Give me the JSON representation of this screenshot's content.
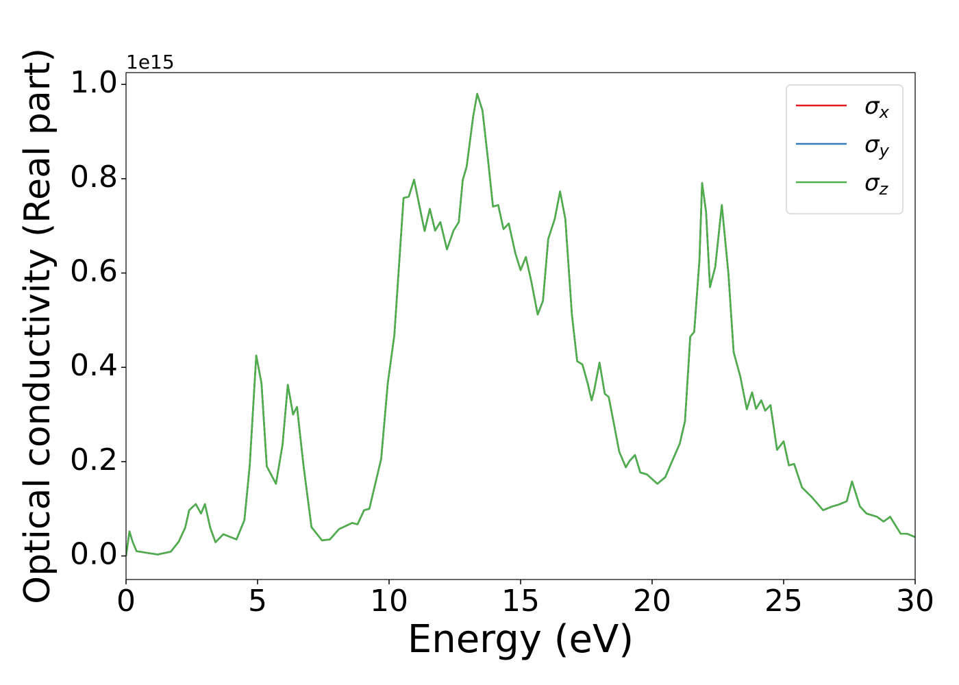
{
  "chart_data": {
    "type": "line",
    "xlabel": "Energy (eV)",
    "ylabel": "Optical conductivity (Real part)",
    "y_offset_label": "1e15",
    "legend": "upper right",
    "grid": false,
    "xlim": [
      0,
      30
    ],
    "ylim": [
      -0.05,
      1.025
    ],
    "xticks": [
      0,
      5,
      10,
      15,
      20,
      25,
      30
    ],
    "yticks": [
      {
        "value": 0,
        "label": "0.0"
      },
      {
        "value": 0.2,
        "label": "0.2"
      },
      {
        "value": 0.4,
        "label": "0.4"
      },
      {
        "value": 0.6,
        "label": "0.6"
      },
      {
        "value": 0.8,
        "label": "0.8"
      },
      {
        "value": 1,
        "label": "1.0"
      }
    ],
    "x": [
      0,
      0.13,
      0.25,
      0.4,
      1.2,
      1.7,
      2.0,
      2.25,
      2.4,
      2.65,
      2.85,
      3.0,
      3.2,
      3.4,
      3.7,
      4.2,
      4.5,
      4.7,
      4.95,
      5.15,
      5.35,
      5.7,
      5.95,
      6.15,
      6.35,
      6.5,
      6.75,
      7.05,
      7.45,
      7.75,
      8.1,
      8.6,
      8.8,
      9.05,
      9.25,
      9.7,
      9.95,
      10.2,
      10.55,
      10.75,
      10.95,
      11.35,
      11.55,
      11.75,
      11.95,
      12.2,
      12.45,
      12.65,
      12.8,
      12.95,
      13.2,
      13.35,
      13.55,
      13.75,
      13.95,
      14.15,
      14.35,
      14.55,
      14.8,
      15.0,
      15.2,
      15.4,
      15.65,
      15.85,
      16.05,
      16.3,
      16.5,
      16.7,
      16.95,
      17.15,
      17.35,
      17.55,
      17.7,
      17.8,
      18.0,
      18.2,
      18.35,
      18.5,
      18.75,
      19.0,
      19.15,
      19.35,
      19.55,
      19.8,
      20.2,
      20.5,
      20.8,
      21.05,
      21.25,
      21.45,
      21.6,
      21.8,
      21.9,
      22.05,
      22.2,
      22.4,
      22.65,
      22.9,
      23.1,
      23.35,
      23.6,
      23.8,
      23.95,
      24.15,
      24.3,
      24.5,
      24.75,
      25.0,
      25.2,
      25.4,
      25.7,
      26.05,
      26.5,
      26.85,
      27.1,
      27.4,
      27.6,
      27.9,
      28.15,
      28.55,
      28.8,
      29.05,
      29.45,
      29.7,
      30
    ],
    "series": [
      {
        "name": "σx",
        "color": "#e41a1c",
        "values": [
          0,
          0.052,
          0.03,
          0.01,
          0.003,
          0.009,
          0.03,
          0.06,
          0.097,
          0.11,
          0.09,
          0.11,
          0.06,
          0.029,
          0.046,
          0.035,
          0.076,
          0.19,
          0.425,
          0.366,
          0.19,
          0.153,
          0.236,
          0.363,
          0.3,
          0.316,
          0.19,
          0.061,
          0.033,
          0.035,
          0.057,
          0.07,
          0.067,
          0.097,
          0.1,
          0.206,
          0.366,
          0.468,
          0.759,
          0.762,
          0.798,
          0.689,
          0.736,
          0.69,
          0.708,
          0.65,
          0.69,
          0.708,
          0.797,
          0.826,
          0.933,
          0.98,
          0.945,
          0.846,
          0.741,
          0.744,
          0.693,
          0.705,
          0.642,
          0.606,
          0.634,
          0.584,
          0.512,
          0.541,
          0.672,
          0.715,
          0.773,
          0.715,
          0.512,
          0.413,
          0.406,
          0.366,
          0.33,
          0.352,
          0.41,
          0.344,
          0.337,
          0.294,
          0.221,
          0.188,
          0.202,
          0.214,
          0.177,
          0.173,
          0.153,
          0.167,
          0.206,
          0.238,
          0.286,
          0.465,
          0.475,
          0.628,
          0.791,
          0.73,
          0.57,
          0.613,
          0.744,
          0.599,
          0.432,
          0.381,
          0.311,
          0.347,
          0.312,
          0.33,
          0.308,
          0.32,
          0.225,
          0.243,
          0.192,
          0.195,
          0.145,
          0.126,
          0.097,
          0.105,
          0.109,
          0.116,
          0.158,
          0.105,
          0.09,
          0.083,
          0.073,
          0.083,
          0.047,
          0.047,
          0.04
        ]
      },
      {
        "name": "σy",
        "color": "#377eb8",
        "values": [
          0,
          0.052,
          0.03,
          0.01,
          0.003,
          0.009,
          0.03,
          0.06,
          0.097,
          0.11,
          0.09,
          0.11,
          0.06,
          0.029,
          0.046,
          0.035,
          0.076,
          0.19,
          0.425,
          0.366,
          0.19,
          0.153,
          0.236,
          0.363,
          0.3,
          0.316,
          0.19,
          0.061,
          0.033,
          0.035,
          0.057,
          0.07,
          0.067,
          0.097,
          0.1,
          0.206,
          0.366,
          0.468,
          0.759,
          0.762,
          0.798,
          0.689,
          0.736,
          0.69,
          0.708,
          0.65,
          0.69,
          0.708,
          0.797,
          0.826,
          0.933,
          0.98,
          0.945,
          0.846,
          0.741,
          0.744,
          0.693,
          0.705,
          0.642,
          0.606,
          0.634,
          0.584,
          0.512,
          0.541,
          0.672,
          0.715,
          0.773,
          0.715,
          0.512,
          0.413,
          0.406,
          0.366,
          0.33,
          0.352,
          0.41,
          0.344,
          0.337,
          0.294,
          0.221,
          0.188,
          0.202,
          0.214,
          0.177,
          0.173,
          0.153,
          0.167,
          0.206,
          0.238,
          0.286,
          0.465,
          0.475,
          0.628,
          0.791,
          0.73,
          0.57,
          0.613,
          0.744,
          0.599,
          0.432,
          0.381,
          0.311,
          0.347,
          0.312,
          0.33,
          0.308,
          0.32,
          0.225,
          0.243,
          0.192,
          0.195,
          0.145,
          0.126,
          0.097,
          0.105,
          0.109,
          0.116,
          0.158,
          0.105,
          0.09,
          0.083,
          0.073,
          0.083,
          0.047,
          0.047,
          0.04
        ]
      },
      {
        "name": "σz",
        "color": "#4daf4a",
        "values": [
          0,
          0.052,
          0.03,
          0.01,
          0.003,
          0.009,
          0.03,
          0.06,
          0.097,
          0.11,
          0.09,
          0.11,
          0.06,
          0.029,
          0.046,
          0.035,
          0.076,
          0.19,
          0.425,
          0.366,
          0.19,
          0.153,
          0.236,
          0.363,
          0.3,
          0.316,
          0.19,
          0.061,
          0.033,
          0.035,
          0.057,
          0.07,
          0.067,
          0.097,
          0.1,
          0.206,
          0.366,
          0.468,
          0.759,
          0.762,
          0.798,
          0.689,
          0.736,
          0.69,
          0.708,
          0.65,
          0.69,
          0.708,
          0.797,
          0.826,
          0.933,
          0.98,
          0.945,
          0.846,
          0.741,
          0.744,
          0.693,
          0.705,
          0.642,
          0.606,
          0.634,
          0.584,
          0.512,
          0.541,
          0.672,
          0.715,
          0.773,
          0.715,
          0.512,
          0.413,
          0.406,
          0.366,
          0.33,
          0.352,
          0.41,
          0.344,
          0.337,
          0.294,
          0.221,
          0.188,
          0.202,
          0.214,
          0.177,
          0.173,
          0.153,
          0.167,
          0.206,
          0.238,
          0.286,
          0.465,
          0.475,
          0.628,
          0.791,
          0.73,
          0.57,
          0.613,
          0.744,
          0.599,
          0.432,
          0.381,
          0.311,
          0.347,
          0.312,
          0.33,
          0.308,
          0.32,
          0.225,
          0.243,
          0.192,
          0.195,
          0.145,
          0.126,
          0.097,
          0.105,
          0.109,
          0.116,
          0.158,
          0.105,
          0.09,
          0.083,
          0.073,
          0.083,
          0.047,
          0.047,
          0.04
        ]
      }
    ]
  }
}
